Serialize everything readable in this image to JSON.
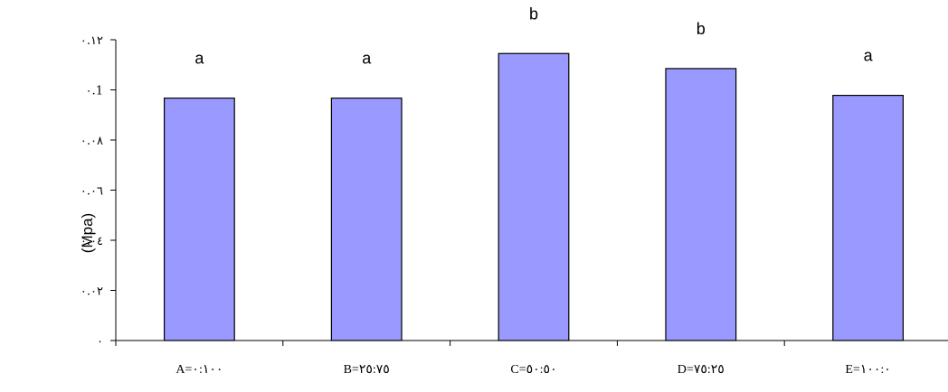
{
  "chart_data": {
    "type": "bar",
    "title": "",
    "xlabel": "",
    "ylabel": "(Mpa)",
    "categories": [
      "A=٠:١٠٠",
      "B=٢٥:٧٥",
      "C=٥٠:٥٠",
      "D=٧٥:٢٥",
      "E=١٠٠:٠"
    ],
    "values": [
      0.0967,
      0.0967,
      0.1145,
      0.1085,
      0.0978
    ],
    "significance_letters": [
      "a",
      "a",
      "b",
      "b",
      "a"
    ],
    "ylim": [
      0,
      0.12
    ],
    "yticks": [
      0,
      0.02,
      0.04,
      0.06,
      0.08,
      0.1,
      0.12
    ],
    "ytick_labels": [
      "٠",
      "٠.٠٢",
      "٠.٠٤",
      "٠.٠٦",
      "٠.٠٨",
      "٠.1",
      "٠.١٢"
    ],
    "grid": false,
    "legend": "none",
    "bar_color": "#9999ff",
    "bar_edge_color": "#000000"
  }
}
